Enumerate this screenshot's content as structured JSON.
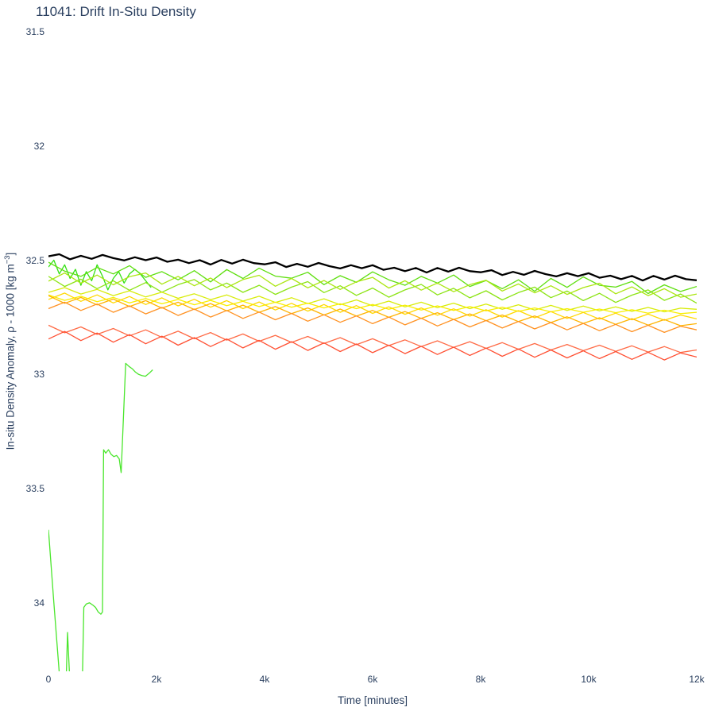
{
  "page": {
    "background": "#ffffff",
    "text_color": "#2a3f5f"
  },
  "chart_data": {
    "type": "line",
    "title": "11041: Drift In-Situ Density",
    "xlabel": "Time [minutes]",
    "ylabel": "In-situ Density Anomaly, ρ - 1000 [kg m⁻³]",
    "ylabel_main": "In-situ Density Anomaly, ρ - 1000 [kg m",
    "ylabel_sup": "−3",
    "ylabel_end": "]",
    "xlim": [
      0,
      12000
    ],
    "ylim": [
      31.5,
      34.3
    ],
    "y_axis_inverted": true,
    "grid": false,
    "legend": false,
    "x_tick_values": [
      0,
      2000,
      4000,
      6000,
      8000,
      10000,
      12000
    ],
    "x_tick_labels": [
      "0",
      "2k",
      "4k",
      "6k",
      "8k",
      "10k",
      "12k"
    ],
    "y_tick_values": [
      31.5,
      32,
      32.5,
      33,
      33.5,
      34
    ],
    "y_tick_labels": [
      "31.5",
      "32",
      "32.5",
      "33",
      "33.5",
      "34"
    ],
    "series": [
      {
        "name": "s01",
        "color": "#35e114",
        "width": 1.3,
        "x_start": 0,
        "x_step": 100,
        "y": [
          32.53,
          32.5,
          32.56,
          32.52,
          32.58,
          32.54,
          32.61,
          32.55,
          32.59,
          32.52,
          32.57,
          32.63,
          32.58,
          32.55,
          32.6,
          32.56,
          32.54,
          32.56,
          32.59,
          32.62
        ]
      },
      {
        "name": "s02-outlier",
        "color": "#4ae62c",
        "width": 1.3,
        "x": [
          0,
          100,
          205,
          320,
          353,
          397,
          500,
          630,
          655,
          700,
          760,
          820,
          870,
          920,
          970,
          1000,
          1020,
          1060,
          1110,
          1160,
          1210,
          1260,
          1310,
          1345,
          1430,
          1490,
          1550,
          1610,
          1670,
          1730,
          1795,
          1865,
          1930
        ],
        "y": [
          33.68,
          34.0,
          34.32,
          34.4,
          34.13,
          34.35,
          34.45,
          34.32,
          34.02,
          34.005,
          34.0,
          34.01,
          34.02,
          34.04,
          34.05,
          34.04,
          33.33,
          33.345,
          33.33,
          33.35,
          33.36,
          33.355,
          33.37,
          33.43,
          32.952,
          32.965,
          32.975,
          32.99,
          33.0,
          33.005,
          33.008,
          32.995,
          32.98
        ]
      },
      {
        "name": "s03",
        "color": "#5fdf10",
        "width": 1.3,
        "x_start": 0,
        "x_step": 300,
        "y": [
          32.509,
          32.548,
          32.571,
          32.532,
          32.56,
          32.524,
          32.575,
          32.55,
          32.586,
          32.546,
          32.595,
          32.541,
          32.58,
          32.535,
          32.57,
          32.579,
          32.553,
          32.607,
          32.568,
          32.597,
          32.551,
          32.586,
          32.61,
          32.571,
          32.6,
          32.565,
          32.615,
          32.589,
          32.625,
          32.586,
          32.636,
          32.58,
          32.619,
          32.573,
          32.61,
          32.618,
          32.593,
          32.646,
          32.608,
          32.637,
          32.615
        ]
      },
      {
        "name": "s04",
        "color": "#8ce414",
        "width": 1.3,
        "x_start": 0,
        "x_step": 300,
        "y": [
          32.571,
          32.615,
          32.583,
          32.625,
          32.59,
          32.632,
          32.598,
          32.64,
          32.607,
          32.585,
          32.63,
          32.6,
          32.641,
          32.61,
          32.65,
          32.618,
          32.594,
          32.642,
          32.612,
          32.654,
          32.622,
          32.662,
          32.63,
          32.606,
          32.652,
          32.623,
          32.665,
          32.634,
          32.674,
          32.642,
          32.618,
          32.664,
          32.635,
          32.677,
          32.645,
          32.685,
          32.653,
          32.63,
          32.676,
          32.648,
          32.688
        ]
      },
      {
        "name": "s05",
        "color": "#abe611",
        "width": 1.3,
        "x_start": 0,
        "x_step": 300,
        "y": [
          32.592,
          32.556,
          32.601,
          32.565,
          32.608,
          32.572,
          32.556,
          32.605,
          32.571,
          32.612,
          32.578,
          32.62,
          32.585,
          32.566,
          32.614,
          32.58,
          32.621,
          32.589,
          32.628,
          32.595,
          32.575,
          32.622,
          32.59,
          32.631,
          32.6,
          32.638,
          32.607,
          32.588,
          32.635,
          32.604,
          32.643,
          32.612,
          32.65,
          32.62,
          32.601,
          32.647,
          32.617,
          32.655,
          32.625,
          32.662,
          32.648
        ]
      },
      {
        "name": "s06",
        "color": "#d8ec0a",
        "width": 1.3,
        "x_start": 0,
        "x_step": 300,
        "y": [
          32.641,
          32.62,
          32.648,
          32.628,
          32.655,
          32.634,
          32.661,
          32.64,
          32.667,
          32.647,
          32.673,
          32.652,
          32.679,
          32.658,
          32.685,
          32.664,
          32.69,
          32.669,
          32.695,
          32.674,
          32.7,
          32.679,
          32.704,
          32.684,
          32.708,
          32.688,
          32.712,
          32.692,
          32.715,
          32.695,
          32.718,
          32.698,
          32.72,
          32.701,
          32.722,
          32.704,
          32.724,
          32.707,
          32.726,
          32.71,
          32.715
        ]
      },
      {
        "name": "s07",
        "color": "#f8ef01",
        "width": 1.3,
        "x_start": 0,
        "x_step": 300,
        "y": [
          32.652,
          32.676,
          32.658,
          32.682,
          32.663,
          32.687,
          32.668,
          32.691,
          32.672,
          32.695,
          32.676,
          32.699,
          32.68,
          32.703,
          32.684,
          32.706,
          32.688,
          32.709,
          32.691,
          32.712,
          32.694,
          32.715,
          32.697,
          32.718,
          32.7,
          32.72,
          32.703,
          32.722,
          32.706,
          32.724,
          32.709,
          32.726,
          32.712,
          32.728,
          32.714,
          32.73,
          32.717,
          32.732,
          32.719,
          32.734,
          32.728
        ]
      },
      {
        "name": "s08",
        "color": "#ffd800",
        "width": 1.3,
        "x_start": 0,
        "x_step": 300,
        "y": [
          32.672,
          32.644,
          32.68,
          32.652,
          32.687,
          32.659,
          32.694,
          32.665,
          32.7,
          32.671,
          32.706,
          32.677,
          32.712,
          32.683,
          32.718,
          32.689,
          32.723,
          32.694,
          32.728,
          32.699,
          32.733,
          32.704,
          32.737,
          32.709,
          32.741,
          32.713,
          32.745,
          32.717,
          32.749,
          32.721,
          32.752,
          32.725,
          32.755,
          32.729,
          32.758,
          32.732,
          32.761,
          32.736,
          32.763,
          32.74,
          32.757
        ]
      },
      {
        "name": "s09",
        "color": "#ffb300",
        "width": 1.3,
        "x_start": 0,
        "x_step": 300,
        "y": [
          32.655,
          32.689,
          32.663,
          32.696,
          32.67,
          32.703,
          32.677,
          32.71,
          32.684,
          32.716,
          32.69,
          32.722,
          32.697,
          32.728,
          32.703,
          32.734,
          32.709,
          32.74,
          32.714,
          32.745,
          32.72,
          32.75,
          32.725,
          32.755,
          32.73,
          32.76,
          32.735,
          32.765,
          32.74,
          32.769,
          32.744,
          32.773,
          32.748,
          32.777,
          32.752,
          32.781,
          32.756,
          32.784,
          32.76,
          32.787,
          32.778
        ]
      },
      {
        "name": "s10",
        "color": "#ff9122",
        "width": 1.3,
        "x_start": 0,
        "x_step": 300,
        "y": [
          32.712,
          32.684,
          32.72,
          32.692,
          32.728,
          32.7,
          32.735,
          32.707,
          32.742,
          32.714,
          32.749,
          32.72,
          32.755,
          32.727,
          32.761,
          32.733,
          32.767,
          32.739,
          32.772,
          32.744,
          32.778,
          32.749,
          32.783,
          32.754,
          32.788,
          32.759,
          32.792,
          32.764,
          32.797,
          32.768,
          32.801,
          32.773,
          32.805,
          32.777,
          32.809,
          32.781,
          32.813,
          32.785,
          32.816,
          32.789,
          32.805
        ]
      },
      {
        "name": "s11",
        "color": "#ff6a45",
        "width": 1.3,
        "x_start": 0,
        "x_step": 300,
        "y": [
          32.785,
          32.818,
          32.792,
          32.825,
          32.799,
          32.831,
          32.805,
          32.838,
          32.811,
          32.844,
          32.817,
          32.85,
          32.823,
          32.855,
          32.829,
          32.86,
          32.834,
          32.865,
          32.839,
          32.87,
          32.844,
          32.874,
          32.849,
          32.878,
          32.853,
          32.882,
          32.857,
          32.886,
          32.861,
          32.89,
          32.865,
          32.893,
          32.869,
          32.896,
          32.872,
          32.899,
          32.875,
          32.902,
          32.878,
          32.904,
          32.893
        ]
      },
      {
        "name": "s12",
        "color": "#ff5033",
        "width": 1.3,
        "x_start": 0,
        "x_step": 300,
        "y": [
          32.845,
          32.812,
          32.852,
          32.819,
          32.859,
          32.826,
          32.866,
          32.833,
          32.872,
          32.839,
          32.878,
          32.845,
          32.884,
          32.851,
          32.89,
          32.857,
          32.895,
          32.862,
          32.9,
          32.867,
          32.905,
          32.872,
          32.909,
          32.877,
          32.913,
          32.881,
          32.917,
          32.885,
          32.921,
          32.889,
          32.925,
          32.893,
          32.928,
          32.897,
          32.931,
          32.9,
          32.934,
          32.903,
          32.937,
          32.906,
          32.924
        ]
      },
      {
        "name": "reference",
        "color": "#000000",
        "width": 2.3,
        "x_start": 0,
        "x_step": 200,
        "y": [
          32.483,
          32.474,
          32.496,
          32.481,
          32.494,
          32.477,
          32.491,
          32.501,
          32.487,
          32.5,
          32.488,
          32.507,
          32.498,
          32.513,
          32.5,
          32.519,
          32.499,
          32.515,
          32.498,
          32.513,
          32.518,
          32.509,
          32.53,
          32.516,
          32.529,
          32.512,
          32.526,
          32.536,
          32.522,
          32.535,
          32.522,
          32.542,
          32.533,
          32.548,
          32.534,
          32.554,
          32.534,
          32.55,
          32.533,
          32.548,
          32.553,
          32.544,
          32.565,
          32.551,
          32.564,
          32.547,
          32.561,
          32.571,
          32.557,
          32.57,
          32.557,
          32.577,
          32.568,
          32.583,
          32.569,
          32.589,
          32.569,
          32.585,
          32.568,
          32.583,
          32.588
        ]
      }
    ]
  }
}
